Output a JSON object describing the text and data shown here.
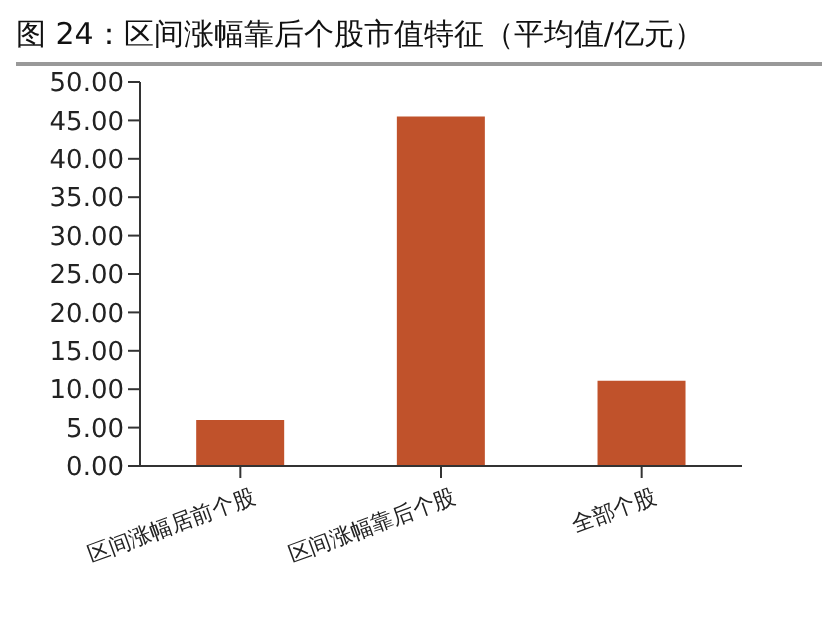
{
  "chart_data": {
    "type": "bar",
    "title": "图 24：区间涨幅靠后个股市值特征（平均值/亿元）",
    "categories": [
      "区间涨幅居前个股",
      "区间涨幅靠后个股",
      "全部个股"
    ],
    "values": [
      6.0,
      45.5,
      11.1
    ],
    "color": "#c0522b",
    "ylim": [
      0,
      50
    ],
    "yticks": [
      {
        "value": 0,
        "label": "0.00"
      },
      {
        "value": 5,
        "label": "5.00"
      },
      {
        "value": 10,
        "label": "10.00"
      },
      {
        "value": 15,
        "label": "15.00"
      },
      {
        "value": 20,
        "label": "20.00"
      },
      {
        "value": 25,
        "label": "25.00"
      },
      {
        "value": 30,
        "label": "30.00"
      },
      {
        "value": 35,
        "label": "35.00"
      },
      {
        "value": 40,
        "label": "40.00"
      },
      {
        "value": 45,
        "label": "45.00"
      },
      {
        "value": 50,
        "label": "50.00"
      }
    ],
    "grid": false,
    "legend": false
  }
}
